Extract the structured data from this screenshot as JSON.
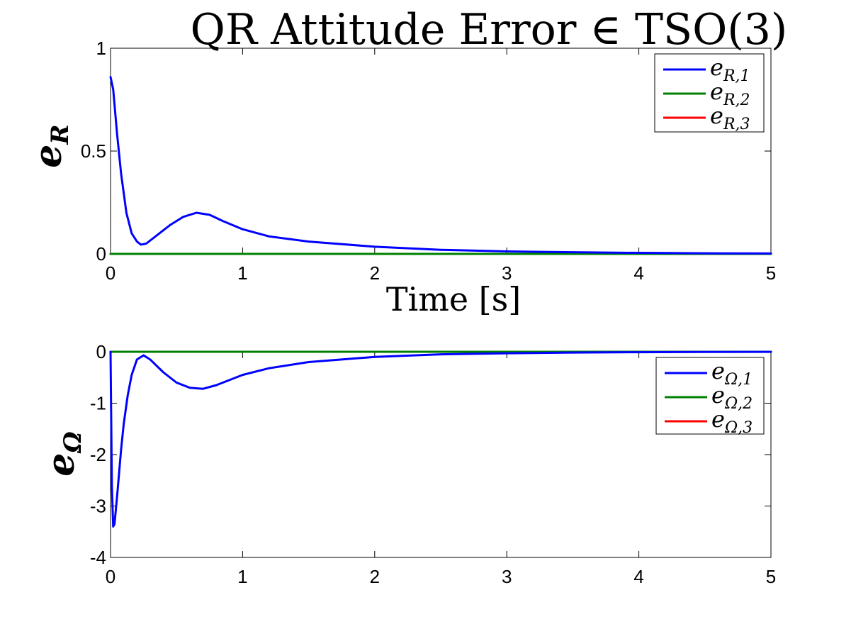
{
  "chart_data": [
    {
      "type": "line",
      "title": "QR Attitude Error ∈ TSO(3)",
      "xlabel": "Time [s]",
      "ylabel": "e_R",
      "ylabel_main": "e",
      "ylabel_sub": "R",
      "xlim": [
        0,
        5
      ],
      "ylim": [
        0,
        1
      ],
      "xticks": [
        "0",
        "1",
        "2",
        "3",
        "4",
        "5"
      ],
      "yticks": [
        "0",
        "0.5",
        "1"
      ],
      "legend_position": "top-right",
      "grid": false,
      "series": [
        {
          "name": "e_{R,1}",
          "legend_main": "e",
          "legend_sub": "R,1",
          "color": "#0000ff",
          "x": [
            0,
            0.02,
            0.05,
            0.08,
            0.12,
            0.16,
            0.2,
            0.23,
            0.27,
            0.35,
            0.45,
            0.55,
            0.65,
            0.75,
            0.85,
            1.0,
            1.2,
            1.5,
            2.0,
            2.5,
            3.0,
            3.5,
            4.0,
            4.5,
            5.0
          ],
          "y": [
            0.86,
            0.8,
            0.58,
            0.39,
            0.2,
            0.1,
            0.06,
            0.045,
            0.05,
            0.09,
            0.14,
            0.18,
            0.2,
            0.19,
            0.16,
            0.12,
            0.085,
            0.06,
            0.035,
            0.02,
            0.012,
            0.008,
            0.005,
            0.003,
            0.002
          ]
        },
        {
          "name": "e_{R,2}",
          "legend_main": "e",
          "legend_sub": "R,2",
          "color": "#008000",
          "x": [
            0,
            5
          ],
          "y": [
            0,
            0
          ]
        },
        {
          "name": "e_{R,3}",
          "legend_main": "e",
          "legend_sub": "R,3",
          "color": "#ff0000",
          "x": [
            0,
            5
          ],
          "y": [
            0,
            0
          ]
        }
      ]
    },
    {
      "type": "line",
      "title": "",
      "xlabel": "",
      "ylabel": "e_Ω",
      "ylabel_main": "e",
      "ylabel_sub": "Ω",
      "xlim": [
        0,
        5
      ],
      "ylim": [
        -4,
        0
      ],
      "xticks": [
        "0",
        "1",
        "2",
        "3",
        "4",
        "5"
      ],
      "yticks": [
        "-4",
        "-3",
        "-2",
        "-1",
        "0"
      ],
      "legend_position": "top-right",
      "grid": false,
      "series": [
        {
          "name": "e_{Ω,1}",
          "legend_main": "e",
          "legend_sub": "Ω,1",
          "color": "#0000ff",
          "x": [
            0,
            0.01,
            0.02,
            0.03,
            0.05,
            0.08,
            0.1,
            0.13,
            0.16,
            0.2,
            0.25,
            0.3,
            0.4,
            0.5,
            0.6,
            0.7,
            0.8,
            0.9,
            1.0,
            1.2,
            1.5,
            2.0,
            2.5,
            3.0,
            3.5,
            4.0,
            4.5,
            5.0
          ],
          "y": [
            0,
            -2.6,
            -3.4,
            -3.35,
            -2.8,
            -1.9,
            -1.4,
            -0.85,
            -0.45,
            -0.15,
            -0.07,
            -0.15,
            -0.4,
            -0.6,
            -0.7,
            -0.72,
            -0.65,
            -0.55,
            -0.45,
            -0.32,
            -0.2,
            -0.1,
            -0.05,
            -0.03,
            -0.015,
            -0.008,
            -0.004,
            -0.002
          ]
        },
        {
          "name": "e_{Ω,2}",
          "legend_main": "e",
          "legend_sub": "Ω,2",
          "color": "#008000",
          "x": [
            0,
            5
          ],
          "y": [
            0,
            0
          ]
        },
        {
          "name": "e_{Ω,3}",
          "legend_main": "e",
          "legend_sub": "Ω,3",
          "color": "#ff0000",
          "x": [
            0,
            5
          ],
          "y": [
            0,
            0
          ]
        }
      ]
    }
  ]
}
